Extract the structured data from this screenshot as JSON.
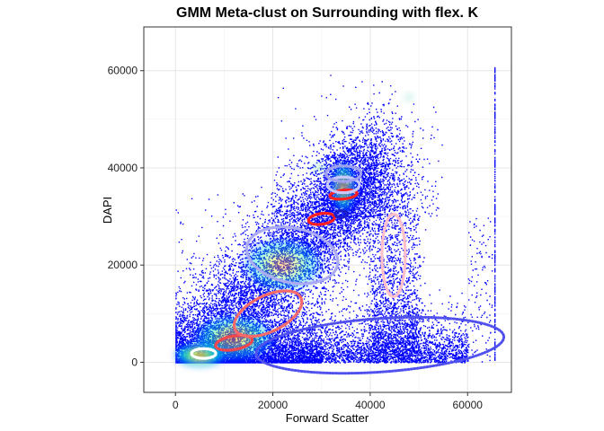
{
  "chart_data": {
    "type": "scatter",
    "title": "GMM Meta-clust on Surrounding with flex. K",
    "xlabel": "Forward Scatter",
    "ylabel": "DAPI",
    "xlim": [
      -6500,
      69000
    ],
    "ylim": [
      -6200,
      69000
    ],
    "x_ticks": [
      0,
      20000,
      40000,
      60000
    ],
    "y_ticks": [
      0,
      20000,
      40000,
      60000
    ],
    "x_tick_labels": [
      "0",
      "20000",
      "40000",
      "60000"
    ],
    "y_tick_labels": [
      "0",
      "20000",
      "40000",
      "60000"
    ],
    "grid": true,
    "background_color": "#ffffff",
    "point_color": "#0000ff",
    "density_colormap": [
      "#0000ff",
      "#00bfff",
      "#00ff7f",
      "#ffff00",
      "#ff0000"
    ],
    "density_regions": [
      {
        "x": 5000,
        "y": 1500,
        "rx": 5500,
        "ry": 2500,
        "level": 0.85
      },
      {
        "x": 12000,
        "y": 5000,
        "rx": 9000,
        "ry": 5000,
        "level": 0.45
      },
      {
        "x": 22000,
        "y": 20000,
        "rx": 9000,
        "ry": 6000,
        "level": 0.35
      },
      {
        "x": 34500,
        "y": 36000,
        "rx": 2600,
        "ry": 5500,
        "level": 0.6
      },
      {
        "x": 29500,
        "y": 40000,
        "rx": 1500,
        "ry": 900,
        "level": 0.5
      },
      {
        "x": 48000,
        "y": 54500,
        "rx": 900,
        "ry": 700,
        "level": 0.5
      }
    ],
    "clusters": [
      {
        "cx": 5800,
        "cy": 1800,
        "rx": 2500,
        "ry": 1000,
        "angle": 0,
        "color": "#ffffff"
      },
      {
        "cx": 12000,
        "cy": 4000,
        "rx": 3800,
        "ry": 1400,
        "angle": 10,
        "color": "#f0474f"
      },
      {
        "cx": 19000,
        "cy": 10000,
        "rx": 7500,
        "ry": 3700,
        "angle": 26,
        "color": "#f46a6a"
      },
      {
        "cx": 24000,
        "cy": 22000,
        "rx": 9500,
        "ry": 5600,
        "angle": -12,
        "color": "#aaaaf6"
      },
      {
        "cx": 30000,
        "cy": 29500,
        "rx": 2700,
        "ry": 1100,
        "angle": 8,
        "color": "#ff2020"
      },
      {
        "cx": 34000,
        "cy": 30500,
        "rx": 1200,
        "ry": 700,
        "angle": 0,
        "color": "#1c1cc8"
      },
      {
        "cx": 34500,
        "cy": 34500,
        "rx": 2800,
        "ry": 900,
        "angle": 6,
        "color": "#ff2222"
      },
      {
        "cx": 34500,
        "cy": 36500,
        "rx": 3300,
        "ry": 1600,
        "angle": 0,
        "color": "#c8c8ff"
      },
      {
        "cx": 34500,
        "cy": 38800,
        "rx": 3600,
        "ry": 1600,
        "angle": 0,
        "color": "#a0a0f0"
      },
      {
        "cx": 44800,
        "cy": 22000,
        "rx": 2400,
        "ry": 8500,
        "angle": 0,
        "color": "#ffbfcb"
      },
      {
        "cx": 42000,
        "cy": 3500,
        "rx": 25500,
        "ry": 5500,
        "angle": 4,
        "color": "#5050ee",
        "style": "dotted"
      }
    ]
  }
}
